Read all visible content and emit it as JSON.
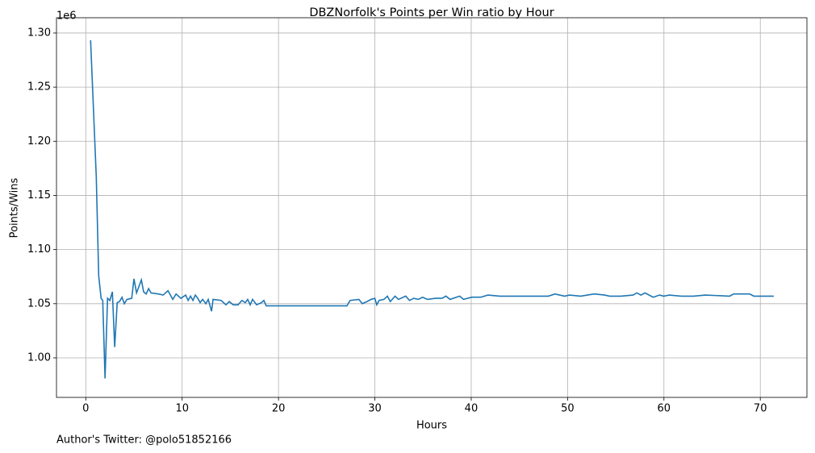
{
  "chart_data": {
    "type": "line",
    "title": "DBZNorfolk's Points per Win ratio by Hour",
    "x_label": "Hours",
    "y_label": "Points/Wins",
    "y_offset_label": "1e6",
    "footer": "Author's Twitter: @polo51852166",
    "color": "#1f77b4",
    "grid": true,
    "xlim": [
      -3.04,
      74.84
    ],
    "ylim": [
      0.9635,
      1.3141
    ],
    "xticks": [
      0,
      10,
      20,
      30,
      40,
      50,
      60,
      70
    ],
    "yticks": [
      {
        "value": 1.0,
        "label": "1.00"
      },
      {
        "value": 1.05,
        "label": "1.05"
      },
      {
        "value": 1.1,
        "label": "1.10"
      },
      {
        "value": 1.15,
        "label": "1.15"
      },
      {
        "value": 1.2,
        "label": "1.20"
      },
      {
        "value": 1.25,
        "label": "1.25"
      },
      {
        "value": 1.3,
        "label": "1.30"
      }
    ],
    "x": [
      0.5,
      1.09,
      1.34,
      1.59,
      1.76,
      2.0,
      2.26,
      2.5,
      2.76,
      3.0,
      3.26,
      3.5,
      3.76,
      4.0,
      4.27,
      4.77,
      5.0,
      5.27,
      5.77,
      6.0,
      6.27,
      6.52,
      6.77,
      7.53,
      8.03,
      8.53,
      9.03,
      9.37,
      9.87,
      10.37,
      10.62,
      10.87,
      11.12,
      11.37,
      11.62,
      11.87,
      12.13,
      12.46,
      12.71,
      13.05,
      13.21,
      14.05,
      14.55,
      14.89,
      15.3,
      15.8,
      16.2,
      16.55,
      16.8,
      17.06,
      17.31,
      17.73,
      18.23,
      18.48,
      18.73,
      27.1,
      27.43,
      28.35,
      28.69,
      29.19,
      29.6,
      30.0,
      30.2,
      30.44,
      30.94,
      31.3,
      31.6,
      32.1,
      32.45,
      33.2,
      33.6,
      34.04,
      34.5,
      34.96,
      35.46,
      36.3,
      36.97,
      37.38,
      37.8,
      38.8,
      39.2,
      40.06,
      40.98,
      41.73,
      42.99,
      48.0,
      48.7,
      49.18,
      49.7,
      50.2,
      51.35,
      52.77,
      53.86,
      54.36,
      55.53,
      56.79,
      57.2,
      57.6,
      58.04,
      58.88,
      59.55,
      59.97,
      60.55,
      61.8,
      63.06,
      64.3,
      66.82,
      67.24,
      68.9,
      69.33,
      70.2,
      71.4
    ],
    "values": [
      1.2933,
      1.167,
      1.076,
      1.055,
      1.053,
      0.981,
      1.055,
      1.053,
      1.061,
      1.01,
      1.051,
      1.052,
      1.056,
      1.05,
      1.054,
      1.055,
      1.073,
      1.06,
      1.072,
      1.061,
      1.059,
      1.064,
      1.06,
      1.059,
      1.058,
      1.062,
      1.054,
      1.059,
      1.055,
      1.058,
      1.053,
      1.057,
      1.053,
      1.058,
      1.055,
      1.051,
      1.054,
      1.05,
      1.054,
      1.043,
      1.054,
      1.053,
      1.049,
      1.052,
      1.049,
      1.049,
      1.053,
      1.051,
      1.054,
      1.049,
      1.054,
      1.049,
      1.051,
      1.053,
      1.048,
      1.048,
      1.053,
      1.054,
      1.05,
      1.052,
      1.054,
      1.055,
      1.049,
      1.053,
      1.054,
      1.057,
      1.052,
      1.057,
      1.054,
      1.057,
      1.053,
      1.055,
      1.054,
      1.056,
      1.054,
      1.055,
      1.055,
      1.057,
      1.054,
      1.057,
      1.054,
      1.056,
      1.056,
      1.058,
      1.057,
      1.057,
      1.059,
      1.058,
      1.057,
      1.058,
      1.057,
      1.059,
      1.058,
      1.057,
      1.057,
      1.058,
      1.06,
      1.058,
      1.06,
      1.056,
      1.058,
      1.057,
      1.058,
      1.057,
      1.057,
      1.058,
      1.057,
      1.059,
      1.059,
      1.057,
      1.057,
      1.057
    ]
  }
}
